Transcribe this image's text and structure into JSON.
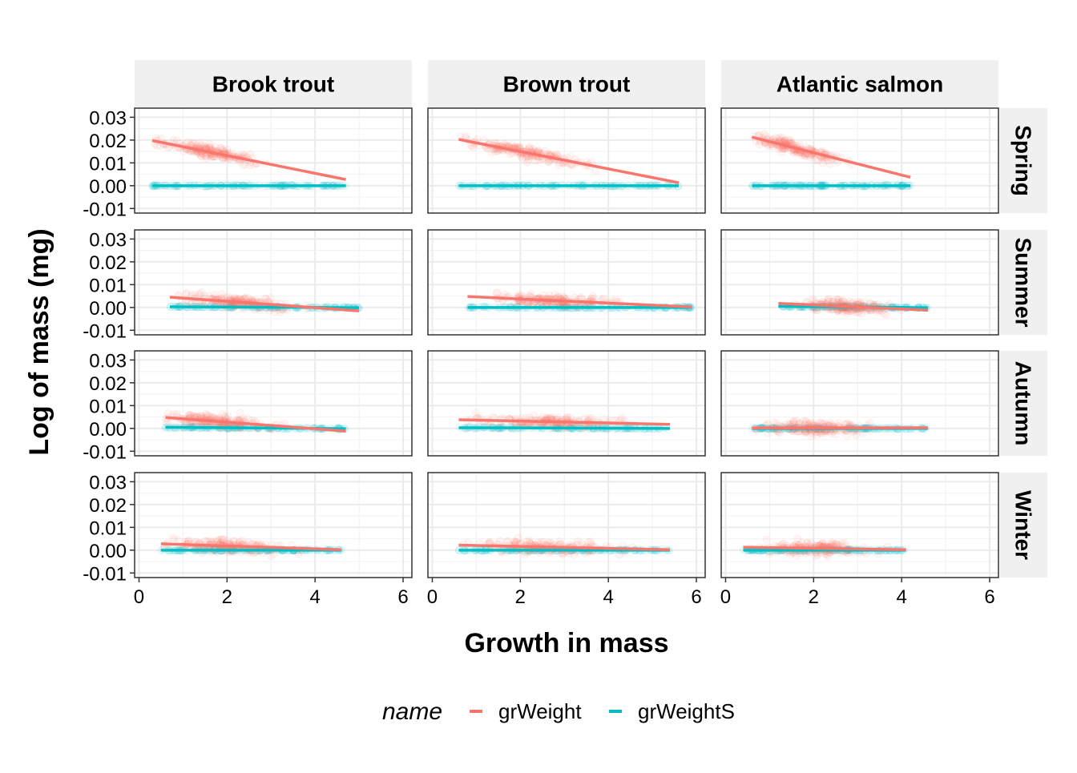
{
  "chart_data": {
    "type": "scatter",
    "xlabel": "Growth in mass",
    "ylabel": "Log of mass (mg)",
    "xlim": [
      -0.1,
      6.2
    ],
    "ylim": [
      -0.012,
      0.034
    ],
    "x_ticks": [
      0,
      2,
      4,
      6
    ],
    "y_ticks": [
      -0.01,
      0.0,
      0.01,
      0.02,
      0.03
    ],
    "y_tick_labels": [
      "-0.01",
      "0.00",
      "0.01",
      "0.02",
      "0.03"
    ],
    "col_facets": [
      "Brook trout",
      "Brown trout",
      "Atlantic salmon"
    ],
    "row_facets": [
      "Spring",
      "Summer",
      "Autumn",
      "Winter"
    ],
    "grid": true,
    "legend": {
      "title": "name",
      "position": "bottom",
      "entries": [
        {
          "label": "grWeight",
          "color": "#F8766D"
        },
        {
          "label": "grWeightS",
          "color": "#00BFC4"
        }
      ]
    },
    "panels": [
      {
        "row": "Spring",
        "col": "Brook trout",
        "grWeight": {
          "x_range": [
            0.3,
            4.7
          ],
          "points_center": [
            1.6,
            0.015
          ],
          "points_x_spread": 0.9,
          "fit": [
            [
              0.3,
              0.0198
            ],
            [
              4.7,
              0.0027
            ]
          ]
        },
        "grWeightS": {
          "x_range": [
            0.3,
            4.7
          ],
          "fit": [
            [
              0.3,
              0.0
            ],
            [
              4.7,
              0.0
            ]
          ]
        }
      },
      {
        "row": "Spring",
        "col": "Brown trout",
        "grWeight": {
          "x_range": [
            0.6,
            5.6
          ],
          "points_center": [
            2.2,
            0.016
          ],
          "points_x_spread": 1.0,
          "fit": [
            [
              0.6,
              0.0203
            ],
            [
              5.6,
              0.0013
            ]
          ]
        },
        "grWeightS": {
          "x_range": [
            0.6,
            5.6
          ],
          "fit": [
            [
              0.6,
              0.0
            ],
            [
              5.6,
              0.0
            ]
          ]
        }
      },
      {
        "row": "Spring",
        "col": "Atlantic salmon",
        "grWeight": {
          "x_range": [
            0.6,
            4.2
          ],
          "points_center": [
            1.6,
            0.017
          ],
          "points_x_spread": 0.8,
          "fit": [
            [
              0.6,
              0.0213
            ],
            [
              4.2,
              0.0037
            ]
          ]
        },
        "grWeightS": {
          "x_range": [
            0.6,
            4.2
          ],
          "fit": [
            [
              0.6,
              0.0
            ],
            [
              4.2,
              0.0
            ]
          ]
        }
      },
      {
        "row": "Summer",
        "col": "Brook trout",
        "grWeight": {
          "x_range": [
            0.7,
            5.0
          ],
          "points_center": [
            2.2,
            0.003
          ],
          "points_x_spread": 1.0,
          "fit": [
            [
              0.7,
              0.0045
            ],
            [
              5.0,
              -0.0015
            ]
          ]
        },
        "grWeightS": {
          "x_range": [
            0.7,
            5.0
          ],
          "fit": [
            [
              0.7,
              0.0003
            ],
            [
              5.0,
              -0.0001
            ]
          ]
        }
      },
      {
        "row": "Summer",
        "col": "Brown trout",
        "grWeight": {
          "x_range": [
            0.8,
            5.9
          ],
          "points_center": [
            2.8,
            0.002
          ],
          "points_x_spread": 1.2,
          "fit": [
            [
              0.8,
              0.0048
            ],
            [
              5.9,
              0.0002
            ]
          ]
        },
        "grWeightS": {
          "x_range": [
            0.8,
            5.9
          ],
          "fit": [
            [
              0.8,
              0.0
            ],
            [
              5.9,
              0.0
            ]
          ]
        }
      },
      {
        "row": "Summer",
        "col": "Atlantic salmon",
        "grWeight": {
          "x_range": [
            1.2,
            4.6
          ],
          "points_center": [
            2.7,
            0.001
          ],
          "points_x_spread": 0.8,
          "fit": [
            [
              1.2,
              0.0018
            ],
            [
              4.6,
              -0.0012
            ]
          ]
        },
        "grWeightS": {
          "x_range": [
            1.2,
            4.6
          ],
          "fit": [
            [
              1.2,
              0.0005
            ],
            [
              4.6,
              -0.0001
            ]
          ]
        }
      },
      {
        "row": "Autumn",
        "col": "Brook trout",
        "grWeight": {
          "x_range": [
            0.6,
            4.7
          ],
          "points_center": [
            1.8,
            0.003
          ],
          "points_x_spread": 1.0,
          "fit": [
            [
              0.6,
              0.0048
            ],
            [
              4.7,
              -0.0012
            ]
          ]
        },
        "grWeightS": {
          "x_range": [
            0.6,
            4.7
          ],
          "fit": [
            [
              0.6,
              0.0005
            ],
            [
              4.7,
              -0.0001
            ]
          ]
        }
      },
      {
        "row": "Autumn",
        "col": "Brown trout",
        "grWeight": {
          "x_range": [
            0.6,
            5.4
          ],
          "points_center": [
            2.8,
            0.003
          ],
          "points_x_spread": 1.3,
          "fit": [
            [
              0.6,
              0.0038
            ],
            [
              5.4,
              0.0018
            ]
          ]
        },
        "grWeightS": {
          "x_range": [
            0.6,
            5.4
          ],
          "fit": [
            [
              0.6,
              0.0003
            ],
            [
              5.4,
              0.0
            ]
          ]
        }
      },
      {
        "row": "Autumn",
        "col": "Atlantic salmon",
        "grWeight": {
          "x_range": [
            0.6,
            4.6
          ],
          "points_center": [
            2.0,
            0.001
          ],
          "points_x_spread": 1.0,
          "fit": [
            [
              0.6,
              0.0002
            ],
            [
              4.6,
              0.0003
            ]
          ]
        },
        "grWeightS": {
          "x_range": [
            0.6,
            4.6
          ],
          "fit": [
            [
              0.6,
              0.0
            ],
            [
              4.6,
              0.0
            ]
          ]
        }
      },
      {
        "row": "Winter",
        "col": "Brook trout",
        "grWeight": {
          "x_range": [
            0.5,
            4.6
          ],
          "points_center": [
            2.0,
            0.002
          ],
          "points_x_spread": 1.1,
          "fit": [
            [
              0.5,
              0.0028
            ],
            [
              4.6,
              0.0002
            ]
          ]
        },
        "grWeightS": {
          "x_range": [
            0.5,
            4.6
          ],
          "fit": [
            [
              0.5,
              0.0
            ],
            [
              4.6,
              0.0
            ]
          ]
        }
      },
      {
        "row": "Winter",
        "col": "Brown trout",
        "grWeight": {
          "x_range": [
            0.6,
            5.4
          ],
          "points_center": [
            2.6,
            0.001
          ],
          "points_x_spread": 1.3,
          "fit": [
            [
              0.6,
              0.0022
            ],
            [
              5.4,
              0.0002
            ]
          ]
        },
        "grWeightS": {
          "x_range": [
            0.6,
            5.4
          ],
          "fit": [
            [
              0.6,
              0.0
            ],
            [
              5.4,
              0.0
            ]
          ]
        }
      },
      {
        "row": "Winter",
        "col": "Atlantic salmon",
        "grWeight": {
          "x_range": [
            0.4,
            4.1
          ],
          "points_center": [
            2.0,
            0.001
          ],
          "points_x_spread": 1.0,
          "fit": [
            [
              0.4,
              0.0013
            ],
            [
              4.1,
              0.0002
            ]
          ]
        },
        "grWeightS": {
          "x_range": [
            0.4,
            4.1
          ],
          "fit": [
            [
              0.4,
              0.0
            ],
            [
              4.1,
              0.0
            ]
          ]
        }
      }
    ]
  }
}
